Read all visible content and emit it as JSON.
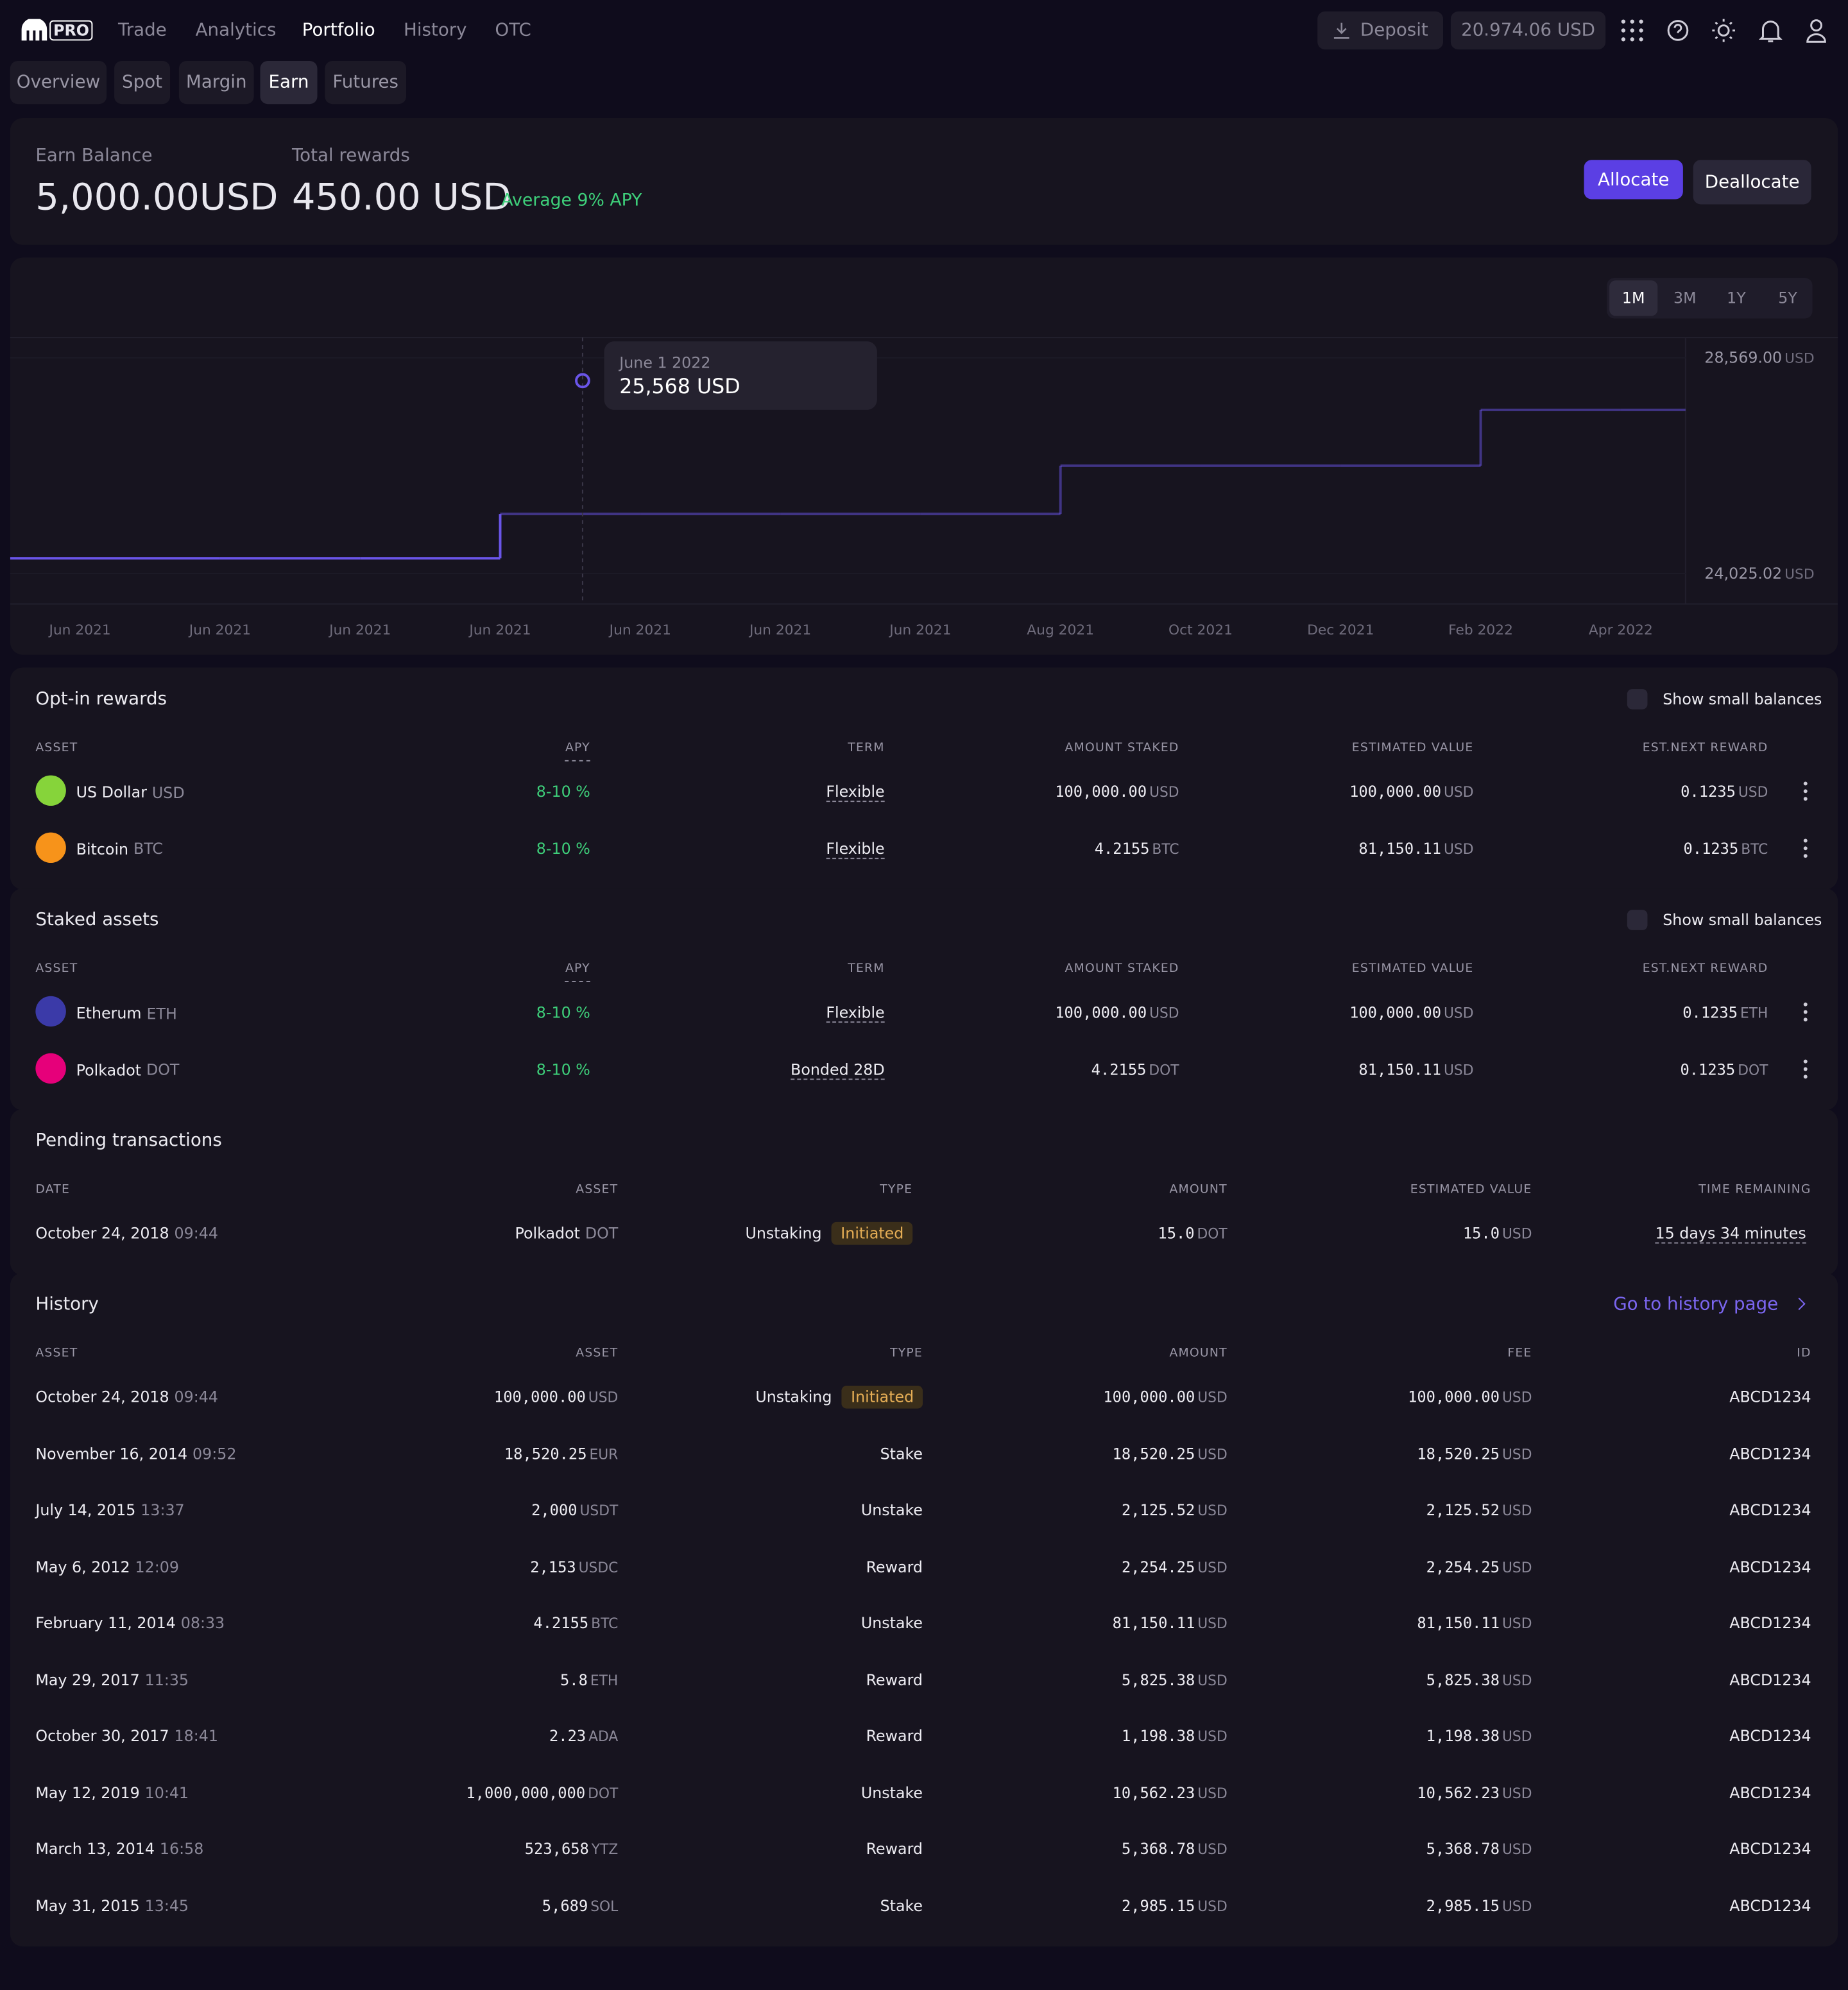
{
  "nav": {
    "logo": "PRO",
    "links": [
      "Trade",
      "Analytics",
      "Portfolio",
      "History",
      "OTC"
    ],
    "deposit": "Deposit",
    "balance": "20.974.06 USD"
  },
  "tabs": [
    "Overview",
    "Spot",
    "Margin",
    "Earn",
    "Futures"
  ],
  "summary": {
    "earn_label": "Earn Balance",
    "earn_value": "5,000.00",
    "earn_unit": "USD",
    "rewards_label": "Total rewards",
    "rewards_value": "450.00",
    "rewards_unit": "USD",
    "apy": "Average 9% APY",
    "allocate": "Allocate",
    "deallocate": "Deallocate"
  },
  "chart": {
    "type": "line",
    "ranges": [
      "1M",
      "3M",
      "1Y",
      "5Y"
    ],
    "categories": [
      "Jun 2021",
      "Jun 2021",
      "Jun 2021",
      "Jun 2021",
      "Jun 2021",
      "Jun 2021",
      "Jun 2021",
      "Aug 2021",
      "Oct 2021",
      "Dec 2021",
      "Feb 2022",
      "Apr 2022"
    ],
    "values": [
      24346,
      24346,
      24346,
      25281,
      25281,
      25281,
      25281,
      26297,
      26297,
      26297,
      27473,
      27473
    ],
    "color": "#6a55e8",
    "ylim": [
      23383,
      28997
    ],
    "yticks": [
      {
        "value": 28569,
        "label": "28,569.00"
      },
      {
        "value": 24025.02,
        "label": "24,025.02"
      }
    ],
    "unit": "USD",
    "tooltip": {
      "date": "June 1 2022",
      "value": "25,568 USD"
    }
  },
  "optin": {
    "title": "Opt-in rewards",
    "toggle": "Show small balances",
    "headers": [
      "ASSET",
      "APY",
      "TERM",
      "AMOUNT STAKED",
      "ESTIMATED VALUE",
      "EST.NEXT REWARD"
    ],
    "rows": [
      {
        "color": "#86d43a",
        "name": "US Dollar",
        "code": "USD",
        "apy": "8-10 %",
        "term": "Flexible",
        "staked": "100,000.00",
        "staked_unit": "USD",
        "value": "100,000.00",
        "value_unit": "USD",
        "reward": "0.1235",
        "reward_unit": "USD"
      },
      {
        "color": "#f7931a",
        "name": "Bitcoin",
        "code": "BTC",
        "apy": "8-10 %",
        "term": "Flexible",
        "staked": "4.2155",
        "staked_unit": "BTC",
        "value": "81,150.11",
        "value_unit": "USD",
        "reward": "0.1235",
        "reward_unit": "BTC"
      }
    ]
  },
  "staked": {
    "title": "Staked assets",
    "toggle": "Show small balances",
    "headers": [
      "ASSET",
      "APY",
      "TERM",
      "AMOUNT STAKED",
      "ESTIMATED VALUE",
      "EST.NEXT REWARD"
    ],
    "rows": [
      {
        "color": "#3b3aa8",
        "name": "Etherum",
        "code": "ETH",
        "apy": "8-10 %",
        "term": "Flexible",
        "staked": "100,000.00",
        "staked_unit": "USD",
        "value": "100,000.00",
        "value_unit": "USD",
        "reward": "0.1235",
        "reward_unit": "ETH"
      },
      {
        "color": "#e6007a",
        "name": "Polkadot",
        "code": "DOT",
        "apy": "8-10 %",
        "term": "Bonded 28D",
        "staked": "4.2155",
        "staked_unit": "DOT",
        "value": "81,150.11",
        "value_unit": "USD",
        "reward": "0.1235",
        "reward_unit": "DOT"
      }
    ]
  },
  "pending": {
    "title": "Pending transactions",
    "headers": [
      "DATE",
      "ASSET",
      "TYPE",
      "AMOUNT",
      "ESTIMATED VALUE",
      "TIME REMAINING"
    ],
    "rows": [
      {
        "date": "October 24, 2018",
        "time": "09:44",
        "asset": "Polkadot",
        "asset_unit": "DOT",
        "type": "Unstaking",
        "status": "Initiated",
        "amount": "15.0",
        "amount_unit": "DOT",
        "value": "15.0",
        "value_unit": "USD",
        "remaining": "15 days 34 minutes"
      }
    ]
  },
  "history": {
    "title": "History",
    "link": "Go to history page",
    "headers": [
      "ASSET",
      "ASSET",
      "TYPE",
      "AMOUNT",
      "FEE",
      "ID"
    ],
    "rows": [
      {
        "date": "October 24, 2018",
        "time": "09:44",
        "asset": "100,000.00",
        "asset_unit": "USD",
        "type": "Unstaking",
        "status": "Initiated",
        "amount": "100,000.00",
        "amount_unit": "USD",
        "fee": "100,000.00",
        "fee_unit": "USD",
        "id": "ABCD1234"
      },
      {
        "date": "November 16, 2014",
        "time": "09:52",
        "asset": "18,520.25",
        "asset_unit": "EUR",
        "type": "Stake",
        "amount": "18,520.25",
        "amount_unit": "USD",
        "fee": "18,520.25",
        "fee_unit": "USD",
        "id": "ABCD1234"
      },
      {
        "date": "July 14, 2015",
        "time": "13:37",
        "asset": "2,000",
        "asset_unit": "USDT",
        "type": "Unstake",
        "amount": "2,125.52",
        "amount_unit": "USD",
        "fee": "2,125.52",
        "fee_unit": "USD",
        "id": "ABCD1234"
      },
      {
        "date": "May 6, 2012",
        "time": "12:09",
        "asset": "2,153",
        "asset_unit": "USDC",
        "type": "Reward",
        "amount": "2,254.25",
        "amount_unit": "USD",
        "fee": "2,254.25",
        "fee_unit": "USD",
        "id": "ABCD1234"
      },
      {
        "date": "February 11, 2014",
        "time": "08:33",
        "asset": "4.2155",
        "asset_unit": "BTC",
        "type": "Unstake",
        "amount": "81,150.11",
        "amount_unit": "USD",
        "fee": "81,150.11",
        "fee_unit": "USD",
        "id": "ABCD1234"
      },
      {
        "date": "May 29, 2017",
        "time": "11:35",
        "asset": "5.8",
        "asset_unit": "ETH",
        "type": "Reward",
        "amount": "5,825.38",
        "amount_unit": "USD",
        "fee": "5,825.38",
        "fee_unit": "USD",
        "id": "ABCD1234"
      },
      {
        "date": "October 30, 2017",
        "time": "18:41",
        "asset": "2.23",
        "asset_unit": "ADA",
        "type": "Reward",
        "amount": "1,198.38",
        "amount_unit": "USD",
        "fee": "1,198.38",
        "fee_unit": "USD",
        "id": "ABCD1234"
      },
      {
        "date": "May 12, 2019",
        "time": "10:41",
        "asset": "1,000,000,000",
        "asset_unit": "DOT",
        "type": "Unstake",
        "amount": "10,562.23",
        "amount_unit": "USD",
        "fee": "10,562.23",
        "fee_unit": "USD",
        "id": "ABCD1234"
      },
      {
        "date": "March 13, 2014",
        "time": "16:58",
        "asset": "523,658",
        "asset_unit": "YTZ",
        "type": "Reward",
        "amount": "5,368.78",
        "amount_unit": "USD",
        "fee": "5,368.78",
        "fee_unit": "USD",
        "id": "ABCD1234"
      },
      {
        "date": "May 31, 2015",
        "time": "13:45",
        "asset": "5,689",
        "asset_unit": "SOL",
        "type": "Stake",
        "amount": "2,985.15",
        "amount_unit": "USD",
        "fee": "2,985.15",
        "fee_unit": "USD",
        "id": "ABCD1234"
      }
    ]
  }
}
